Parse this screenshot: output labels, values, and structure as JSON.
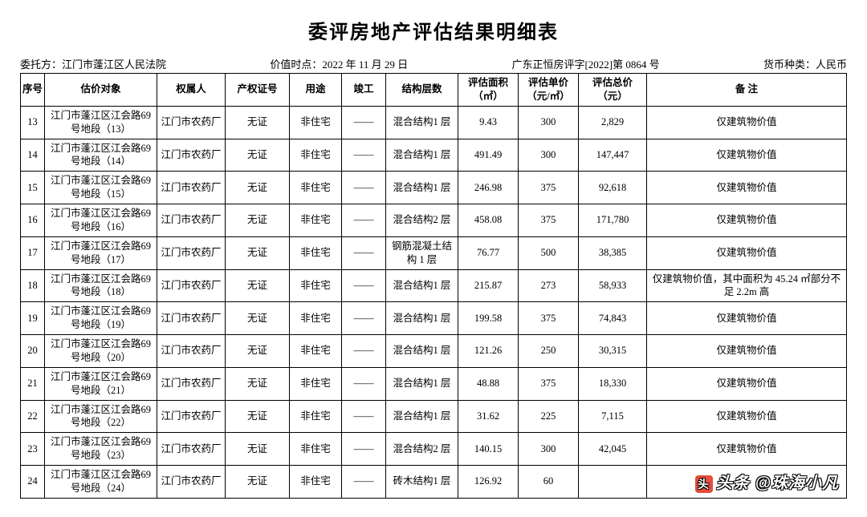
{
  "title": "委评房地产评估结果明细表",
  "meta": {
    "client_label": "委托方：江门市蓬江区人民法院",
    "date_label": "价值时点：2022 年 11 月 29 日",
    "doc_no": "广东正恒房评字[2022]第 0864 号",
    "currency": "货币种类：人民币"
  },
  "columns": {
    "seq": "序号",
    "obj": "估价对象",
    "owner": "权属人",
    "cert": "产权证号",
    "use": "用途",
    "done": "竣工",
    "struct": "结构层数",
    "area": "评估面积（㎡）",
    "unit": "评估单价（元/㎡）",
    "total": "评估总价（元）",
    "note": "备 注"
  },
  "rows": [
    {
      "seq": "13",
      "obj": "江门市蓬江区江会路69 号地段（13）",
      "owner": "江门市农药厂",
      "cert": "无证",
      "use": "非住宅",
      "done": "——",
      "struct": "混合结构1 层",
      "area": "9.43",
      "unit": "300",
      "total": "2,829",
      "note": "仅建筑物价值"
    },
    {
      "seq": "14",
      "obj": "江门市蓬江区江会路69 号地段（14）",
      "owner": "江门市农药厂",
      "cert": "无证",
      "use": "非住宅",
      "done": "——",
      "struct": "混合结构1 层",
      "area": "491.49",
      "unit": "300",
      "total": "147,447",
      "note": "仅建筑物价值"
    },
    {
      "seq": "15",
      "obj": "江门市蓬江区江会路69 号地段（15）",
      "owner": "江门市农药厂",
      "cert": "无证",
      "use": "非住宅",
      "done": "——",
      "struct": "混合结构1 层",
      "area": "246.98",
      "unit": "375",
      "total": "92,618",
      "note": "仅建筑物价值"
    },
    {
      "seq": "16",
      "obj": "江门市蓬江区江会路69 号地段（16）",
      "owner": "江门市农药厂",
      "cert": "无证",
      "use": "非住宅",
      "done": "——",
      "struct": "混合结构2 层",
      "area": "458.08",
      "unit": "375",
      "total": "171,780",
      "note": "仅建筑物价值"
    },
    {
      "seq": "17",
      "obj": "江门市蓬江区江会路69 号地段（17）",
      "owner": "江门市农药厂",
      "cert": "无证",
      "use": "非住宅",
      "done": "——",
      "struct": "钢筋混凝土结构 1 层",
      "area": "76.77",
      "unit": "500",
      "total": "38,385",
      "note": "仅建筑物价值"
    },
    {
      "seq": "18",
      "obj": "江门市蓬江区江会路69 号地段（18）",
      "owner": "江门市农药厂",
      "cert": "无证",
      "use": "非住宅",
      "done": "——",
      "struct": "混合结构1 层",
      "area": "215.87",
      "unit": "273",
      "total": "58,933",
      "note": "仅建筑物价值，其中面积为 45.24 ㎡部分不足 2.2m 高"
    },
    {
      "seq": "19",
      "obj": "江门市蓬江区江会路69 号地段（19）",
      "owner": "江门市农药厂",
      "cert": "无证",
      "use": "非住宅",
      "done": "——",
      "struct": "混合结构1 层",
      "area": "199.58",
      "unit": "375",
      "total": "74,843",
      "note": "仅建筑物价值"
    },
    {
      "seq": "20",
      "obj": "江门市蓬江区江会路69 号地段（20）",
      "owner": "江门市农药厂",
      "cert": "无证",
      "use": "非住宅",
      "done": "——",
      "struct": "混合结构1 层",
      "area": "121.26",
      "unit": "250",
      "total": "30,315",
      "note": "仅建筑物价值"
    },
    {
      "seq": "21",
      "obj": "江门市蓬江区江会路69 号地段（21）",
      "owner": "江门市农药厂",
      "cert": "无证",
      "use": "非住宅",
      "done": "——",
      "struct": "混合结构1 层",
      "area": "48.88",
      "unit": "375",
      "total": "18,330",
      "note": "仅建筑物价值"
    },
    {
      "seq": "22",
      "obj": "江门市蓬江区江会路69 号地段（22）",
      "owner": "江门市农药厂",
      "cert": "无证",
      "use": "非住宅",
      "done": "——",
      "struct": "混合结构1 层",
      "area": "31.62",
      "unit": "225",
      "total": "7,115",
      "note": "仅建筑物价值"
    },
    {
      "seq": "23",
      "obj": "江门市蓬江区江会路69 号地段（23）",
      "owner": "江门市农药厂",
      "cert": "无证",
      "use": "非住宅",
      "done": "——",
      "struct": "混合结构2 层",
      "area": "140.15",
      "unit": "300",
      "total": "42,045",
      "note": "仅建筑物价值"
    },
    {
      "seq": "24",
      "obj": "江门市蓬江区江会路69 号地段（24）",
      "owner": "江门市农药厂",
      "cert": "无证",
      "use": "非住宅",
      "done": "——",
      "struct": "砖木结构1 层",
      "area": "126.92",
      "unit": "60",
      "total": "",
      "note": ""
    }
  ],
  "watermark": "头条 @珠海小凡"
}
